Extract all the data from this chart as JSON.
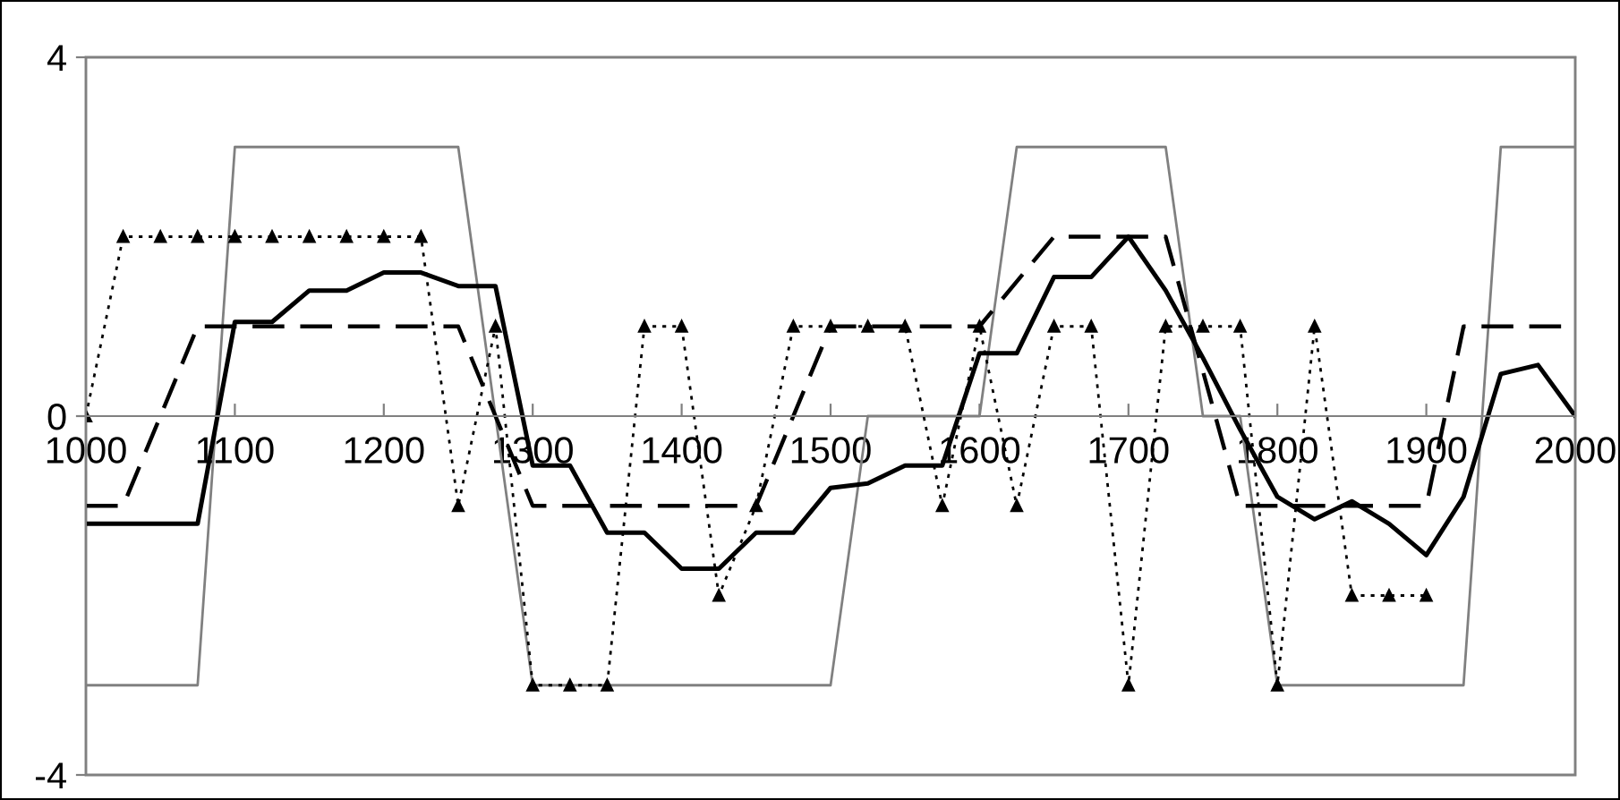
{
  "chart_data": {
    "type": "line",
    "xlim": [
      1000,
      2000
    ],
    "xticks": [
      1000,
      1100,
      1200,
      1300,
      1400,
      1500,
      1600,
      1700,
      1800,
      1900,
      2000
    ],
    "ylim": [
      -4,
      4
    ],
    "yticks": [
      -4,
      0,
      4
    ],
    "grid": false,
    "legend": false,
    "series": [
      {
        "color": "#808080",
        "line_style": "solid",
        "marker": "none",
        "x": [
          1000,
          1075,
          1100,
          1250,
          1300,
          1500,
          1525,
          1600,
          1625,
          1725,
          1750,
          1775,
          1800,
          1925,
          1950,
          2000
        ],
        "values": [
          -3,
          -3,
          3,
          3,
          -3,
          -3,
          0,
          0,
          3,
          3,
          0,
          0,
          -3,
          -3,
          3,
          3
        ]
      },
      {
        "color": "#000000",
        "line_style": "dashed",
        "marker": "none",
        "x": [
          1000,
          1025,
          1075,
          1250,
          1300,
          1450,
          1500,
          1600,
          1650,
          1725,
          1775,
          1900,
          1925,
          2000
        ],
        "values": [
          -1,
          -1,
          1,
          1,
          -1,
          -1,
          1,
          1,
          2,
          2,
          -1,
          -1,
          1,
          1
        ]
      },
      {
        "color": "#000000",
        "line_style": "dotted",
        "marker": "triangle",
        "x": [
          1000,
          1025,
          1050,
          1075,
          1100,
          1125,
          1150,
          1175,
          1200,
          1225,
          1250,
          1275,
          1300,
          1325,
          1350,
          1375,
          1400,
          1425,
          1450,
          1475,
          1500,
          1525,
          1550,
          1575,
          1600,
          1625,
          1650,
          1675,
          1700,
          1725,
          1750,
          1775,
          1800,
          1825,
          1850,
          1875,
          1900
        ],
        "values": [
          0,
          2,
          2,
          2,
          2,
          2,
          2,
          2,
          2,
          2,
          -1,
          1,
          -3,
          -3,
          -3,
          1,
          1,
          -2,
          -1,
          1,
          1,
          1,
          1,
          -1,
          1,
          -1,
          1,
          1,
          -3,
          1,
          1,
          1,
          -3,
          1,
          -2,
          -2,
          -2
        ]
      },
      {
        "color": "#000000",
        "line_style": "solid",
        "marker": "none",
        "x": [
          1000,
          1075,
          1100,
          1125,
          1150,
          1175,
          1200,
          1225,
          1250,
          1275,
          1300,
          1325,
          1350,
          1375,
          1400,
          1425,
          1450,
          1475,
          1500,
          1525,
          1550,
          1575,
          1600,
          1625,
          1650,
          1675,
          1700,
          1725,
          1750,
          1775,
          1800,
          1825,
          1850,
          1875,
          1900,
          1925,
          1950,
          1975,
          2000
        ],
        "values": [
          -1.2,
          -1.2,
          1.05,
          1.05,
          1.4,
          1.4,
          1.6,
          1.6,
          1.45,
          1.45,
          -0.55,
          -0.55,
          -1.3,
          -1.3,
          -1.7,
          -1.7,
          -1.3,
          -1.3,
          -0.8,
          -0.75,
          -0.55,
          -0.55,
          0.7,
          0.7,
          1.55,
          1.55,
          2.0,
          1.4,
          0.65,
          -0.15,
          -0.9,
          -1.15,
          -0.95,
          -1.2,
          -1.55,
          -0.9,
          0.47,
          0.57,
          0
        ]
      }
    ]
  }
}
